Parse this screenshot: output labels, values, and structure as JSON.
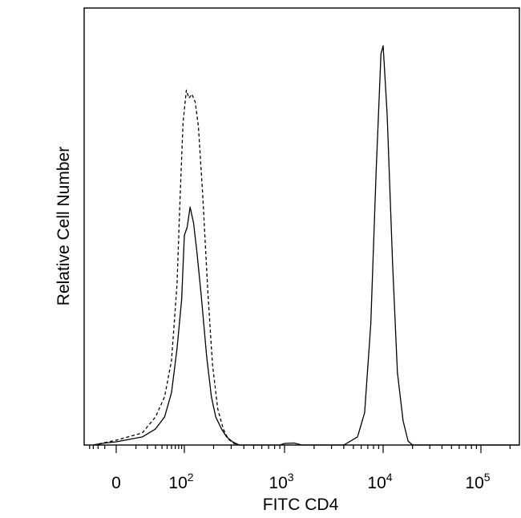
{
  "chart_data": {
    "type": "line",
    "subtype": "flow-cytometry-histogram-overlay",
    "xlabel": "FITC CD4",
    "ylabel": "Relative Cell Number",
    "x_scale": "biexponential",
    "x_range": [
      -50,
      250000
    ],
    "y_range": [
      0,
      1
    ],
    "grid": false,
    "legend": "none",
    "x_tick_labels": [
      {
        "value": 0,
        "base": "0",
        "exp": ""
      },
      {
        "value": 100,
        "base": "10",
        "exp": "2"
      },
      {
        "value": 1000,
        "base": "10",
        "exp": "3"
      },
      {
        "value": 10000,
        "base": "10",
        "exp": "4"
      },
      {
        "value": 100000,
        "base": "10",
        "exp": "5"
      }
    ],
    "series": [
      {
        "line_style": "solid",
        "color": "#000000",
        "points": [
          [
            -30,
            0.0
          ],
          [
            -10,
            0.005
          ],
          [
            0,
            0.008
          ],
          [
            15,
            0.02
          ],
          [
            30,
            0.04
          ],
          [
            45,
            0.07
          ],
          [
            60,
            0.13
          ],
          [
            75,
            0.24
          ],
          [
            90,
            0.36
          ],
          [
            100,
            0.52
          ],
          [
            107,
            0.54
          ],
          [
            115,
            0.59
          ],
          [
            125,
            0.55
          ],
          [
            135,
            0.48
          ],
          [
            150,
            0.37
          ],
          [
            170,
            0.22
          ],
          [
            190,
            0.12
          ],
          [
            210,
            0.07
          ],
          [
            240,
            0.04
          ],
          [
            270,
            0.02
          ],
          [
            310,
            0.008
          ],
          [
            360,
            0.0
          ],
          [
            900,
            0.0
          ],
          [
            1000,
            0.004
          ],
          [
            1250,
            0.005
          ],
          [
            1500,
            0.0
          ],
          [
            4000,
            0.0
          ],
          [
            5500,
            0.02
          ],
          [
            6500,
            0.08
          ],
          [
            7500,
            0.3
          ],
          [
            8500,
            0.68
          ],
          [
            9500,
            0.97
          ],
          [
            10000,
            0.99
          ],
          [
            11000,
            0.82
          ],
          [
            12500,
            0.45
          ],
          [
            14000,
            0.18
          ],
          [
            16000,
            0.06
          ],
          [
            18000,
            0.01
          ],
          [
            20000,
            0.0
          ],
          [
            250000,
            0.0
          ]
        ]
      },
      {
        "line_style": "dashed",
        "color": "#000000",
        "points": [
          [
            -30,
            0.0
          ],
          [
            -10,
            0.006
          ],
          [
            0,
            0.012
          ],
          [
            15,
            0.03
          ],
          [
            30,
            0.07
          ],
          [
            45,
            0.12
          ],
          [
            60,
            0.21
          ],
          [
            75,
            0.4
          ],
          [
            85,
            0.62
          ],
          [
            95,
            0.8
          ],
          [
            105,
            0.88
          ],
          [
            112,
            0.86
          ],
          [
            120,
            0.87
          ],
          [
            130,
            0.85
          ],
          [
            140,
            0.79
          ],
          [
            155,
            0.62
          ],
          [
            175,
            0.38
          ],
          [
            195,
            0.2
          ],
          [
            220,
            0.09
          ],
          [
            250,
            0.04
          ],
          [
            280,
            0.015
          ],
          [
            320,
            0.004
          ],
          [
            360,
            0.0
          ]
        ]
      }
    ]
  }
}
